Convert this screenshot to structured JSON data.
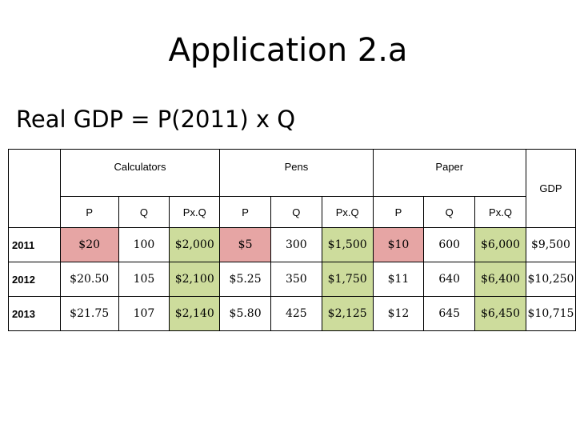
{
  "page": {
    "title": "Application 2.a",
    "subtitle": "Real GDP = P(2011) x Q"
  },
  "table": {
    "groups": [
      "Calculators",
      "Pens",
      "Paper"
    ],
    "gdp_header": "GDP",
    "subheaders": [
      "P",
      "Q",
      "Px.Q",
      "P",
      "Q",
      "Px.Q",
      "P",
      "Q",
      "Px.Q"
    ],
    "rows": [
      {
        "year": "2011",
        "cells": [
          "$20",
          "100",
          "$2,000",
          "$5",
          "300",
          "$1,500",
          "$10",
          "600",
          "$6,000"
        ],
        "gdp": "$9,500"
      },
      {
        "year": "2012",
        "cells": [
          "$20.50",
          "105",
          "$2,100",
          "$5.25",
          "350",
          "$1,750",
          "$11",
          "640",
          "$6,400"
        ],
        "gdp": "$10,250"
      },
      {
        "year": "2013",
        "cells": [
          "$21.75",
          "107",
          "$2,140",
          "$5.80",
          "425",
          "$2,125",
          "$12",
          "645",
          "$6,450"
        ],
        "gdp": "$10,715"
      }
    ],
    "colors": {
      "base_price_highlight": "#e6a5a4",
      "value_highlight": "#cddc9c"
    }
  }
}
